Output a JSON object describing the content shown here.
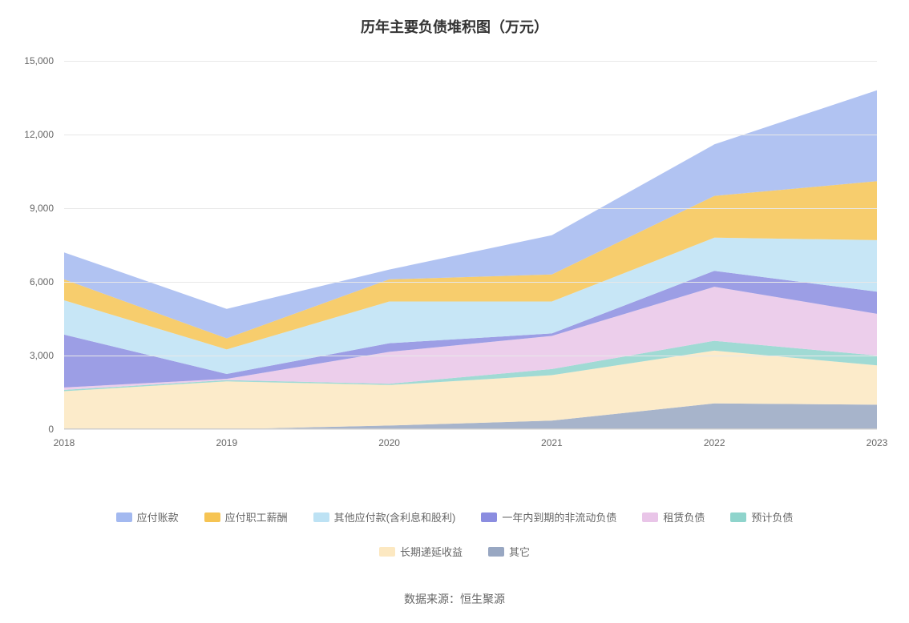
{
  "chart": {
    "type": "stacked-area",
    "title": "历年主要负债堆积图（万元）",
    "title_fontsize": 18,
    "background_color": "#ffffff",
    "grid_color": "#e8e8e8",
    "axis_color": "#cccccc",
    "label_color": "#666666",
    "label_fontsize": 12,
    "categories": [
      "2018",
      "2019",
      "2020",
      "2021",
      "2022",
      "2023"
    ],
    "ylim": [
      0,
      15000
    ],
    "ytick_step": 3000,
    "yticks": [
      "0",
      "3,000",
      "6,000",
      "9,000",
      "12,000",
      "15,000"
    ],
    "fill_opacity": 0.85,
    "series": [
      {
        "name": "其它",
        "color": "#98a7c2",
        "values": [
          0,
          0,
          150,
          350,
          1050,
          1000
        ]
      },
      {
        "name": "长期递延收益",
        "color": "#fce8c1",
        "values": [
          1550,
          1950,
          1650,
          1850,
          2150,
          1600
        ]
      },
      {
        "name": "预计负债",
        "color": "#8fd4cc",
        "values": [
          50,
          50,
          50,
          250,
          400,
          400
        ]
      },
      {
        "name": "租赁负债",
        "color": "#e9c5e8",
        "values": [
          100,
          50,
          1300,
          1350,
          2200,
          1700
        ]
      },
      {
        "name": "一年内到期的非流动负债",
        "color": "#8b8de0",
        "values": [
          2150,
          200,
          350,
          100,
          650,
          900
        ]
      },
      {
        "name": "其他应付款(含利息和股利)",
        "color": "#bde2f4",
        "values": [
          1400,
          1000,
          1700,
          1300,
          1350,
          2100
        ]
      },
      {
        "name": "应付职工薪酬",
        "color": "#f6c453",
        "values": [
          850,
          450,
          900,
          1100,
          1700,
          2400
        ]
      },
      {
        "name": "应付账款",
        "color": "#a3b9f0",
        "values": [
          1100,
          1200,
          400,
          1600,
          2100,
          3700
        ]
      }
    ],
    "legend_order": [
      "应付账款",
      "应付职工薪酬",
      "其他应付款(含利息和股利)",
      "一年内到期的非流动负债",
      "租赁负债",
      "预计负债",
      "长期递延收益",
      "其它"
    ]
  },
  "source_note": "数据来源：恒生聚源"
}
